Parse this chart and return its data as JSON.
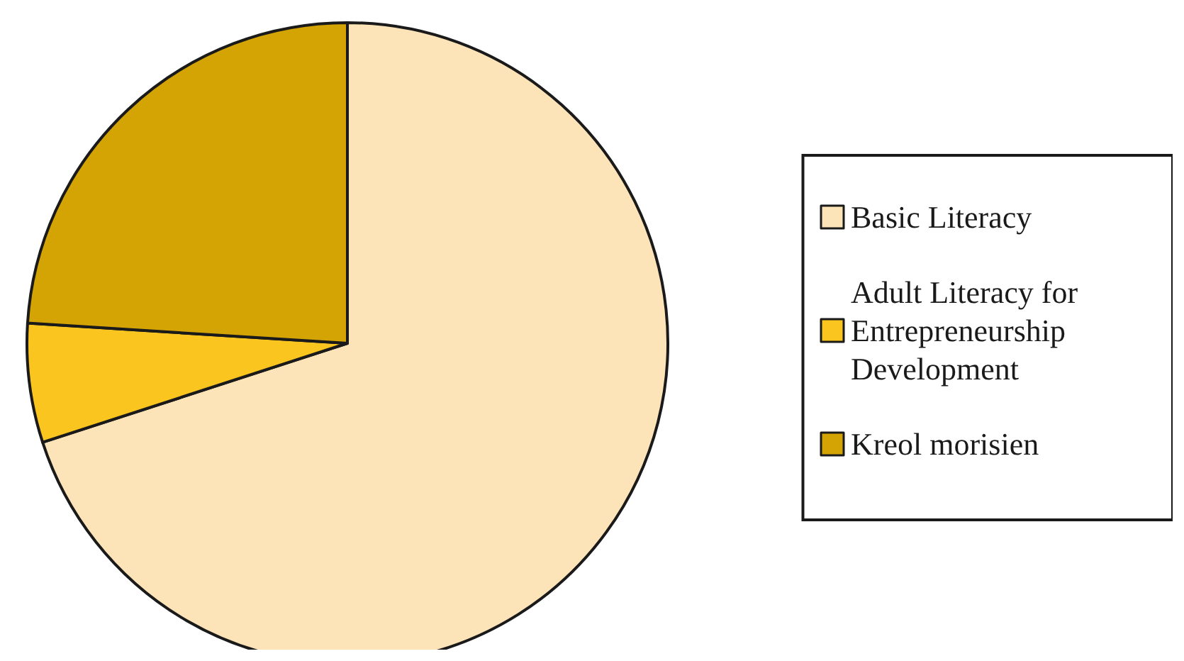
{
  "chart_data": {
    "type": "pie",
    "categories": [
      "Basic Literacy",
      "Adult Literacy for Entrepreneurship Development",
      "Kreol morisien"
    ],
    "values": [
      70,
      6,
      24
    ],
    "colors": [
      "#fde3b8",
      "#fbc520",
      "#d4a404"
    ],
    "legend": "right"
  }
}
